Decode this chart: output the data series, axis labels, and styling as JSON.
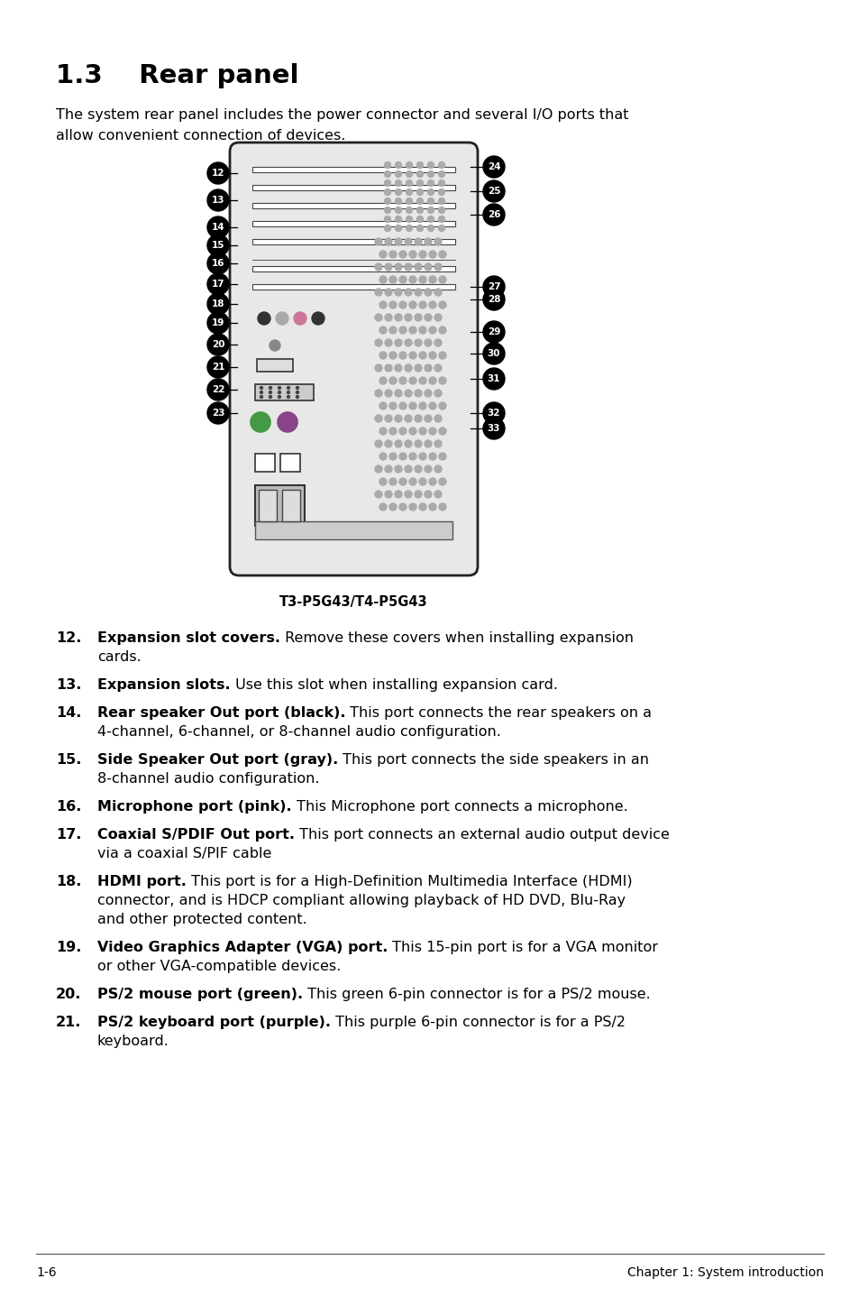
{
  "title": "1.3    Rear panel",
  "intro_text1": "The system rear panel includes the power connector and several I/O ports that",
  "intro_text2": "allow convenient connection of devices.",
  "diagram_caption": "T3-P5G43/T4-P5G43",
  "items": [
    {
      "num": "12.",
      "bold": "Expansion slot covers.",
      "rest": " Remove these covers when installing expansion",
      "extra": [
        "cards."
      ]
    },
    {
      "num": "13.",
      "bold": "Expansion slots.",
      "rest": " Use this slot when installing expansion card.",
      "extra": []
    },
    {
      "num": "14.",
      "bold": "Rear speaker Out port (black).",
      "rest": " This port connects the rear speakers on a",
      "extra": [
        "4-channel, 6-channel, or 8-channel audio configuration."
      ]
    },
    {
      "num": "15.",
      "bold": "Side Speaker Out port (gray).",
      "rest": " This port connects the side speakers in an",
      "extra": [
        "8-channel audio configuration."
      ]
    },
    {
      "num": "16.",
      "bold": "Microphone port (pink).",
      "rest": " This Microphone port connects a microphone.",
      "extra": []
    },
    {
      "num": "17.",
      "bold": "Coaxial S/PDIF Out port.",
      "rest": " This port connects an external audio output device",
      "extra": [
        "via a coaxial S/PIF cable"
      ]
    },
    {
      "num": "18.",
      "bold": "HDMI port.",
      "rest": " This port is for a High-Definition Multimedia Interface (HDMI)",
      "extra": [
        "connector, and is HDCP compliant allowing playback of HD DVD, Blu-Ray",
        "and other protected content."
      ]
    },
    {
      "num": "19.",
      "bold": "Video Graphics Adapter (VGA) port.",
      "rest": " This 15-pin port is for a VGA monitor",
      "extra": [
        "or other VGA-compatible devices."
      ]
    },
    {
      "num": "20.",
      "bold": "PS/2 mouse port (green).",
      "rest": " This green 6-pin connector is for a PS/2 mouse.",
      "extra": []
    },
    {
      "num": "21.",
      "bold": "PS/2 keyboard port (purple).",
      "rest": " This purple 6-pin connector is for a PS/2",
      "extra": [
        "keyboard."
      ]
    }
  ],
  "footer_left": "1-6",
  "footer_right": "Chapter 1: System introduction",
  "left_labels": [
    "12",
    "13",
    "14",
    "15",
    "16",
    "17",
    "18",
    "19",
    "20",
    "21",
    "22",
    "23"
  ],
  "right_labels": [
    "24",
    "25",
    "26",
    "27",
    "28",
    "29",
    "30",
    "31",
    "32",
    "33"
  ]
}
